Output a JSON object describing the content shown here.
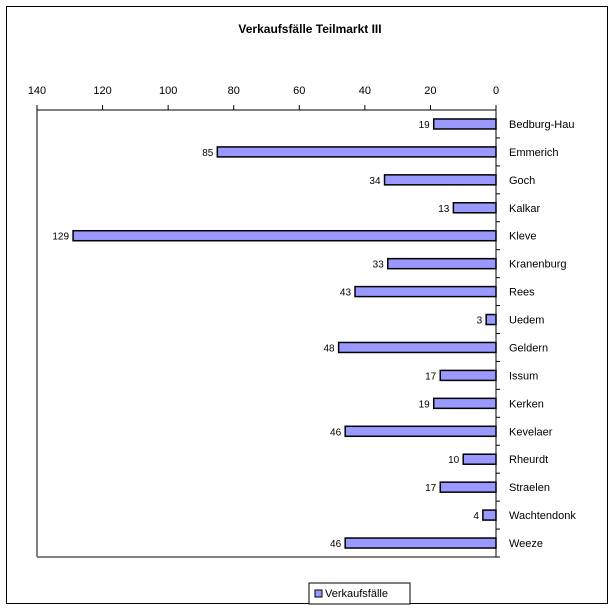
{
  "chart_data": {
    "type": "bar",
    "orientation": "horizontal",
    "title": "Verkaufsfälle Teilmarkt III",
    "categories": [
      "Bedburg-Hau",
      "Emmerich",
      "Goch",
      "Kalkar",
      "Kleve",
      "Kranenburg",
      "Rees",
      "Uedem",
      "Geldern",
      "Issum",
      "Kerken",
      "Kevelaer",
      "Rheurdt",
      "Straelen",
      "Wachtendonk",
      "Weeze"
    ],
    "series": [
      {
        "name": "Verkaufsfälle",
        "values": [
          19,
          85,
          34,
          13,
          129,
          33,
          43,
          3,
          48,
          17,
          19,
          46,
          10,
          17,
          4,
          46
        ]
      }
    ],
    "xlim": [
      0,
      140
    ],
    "x_reversed": true,
    "x_ticks": [
      140,
      120,
      100,
      80,
      60,
      40,
      20,
      0
    ],
    "x_axis_position": "top",
    "legend": "bottom",
    "grid": false,
    "bar_color": "#9999ff",
    "bar_border_color": "#000000"
  }
}
